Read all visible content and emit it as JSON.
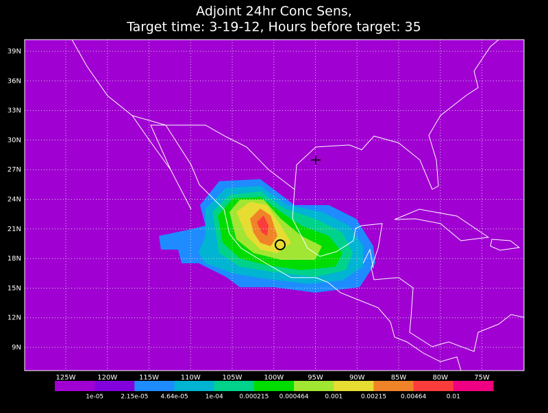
{
  "map": {
    "title": [
      "Adjoint 24hr Conc Sens,",
      "Target time: 3-19-12, Hours before target: 35"
    ],
    "lat_labels": [
      "39N",
      "36N",
      "33N",
      "30N",
      "27N",
      "24N",
      "21N",
      "18N",
      "15N",
      "12N",
      "9N"
    ],
    "lon_labels": [
      "125W",
      "120W",
      "115W",
      "110W",
      "105W",
      "100W",
      "95W",
      "90W",
      "85W",
      "80W",
      "75W"
    ],
    "colorbar": {
      "colors": [
        "#a000d2",
        "#8200dc",
        "#1e8cff",
        "#00b4d2",
        "#00d28c",
        "#00dc00",
        "#a0e632",
        "#e6dc32",
        "#f08228",
        "#fa3c3c",
        "#f00082"
      ],
      "labels": [
        "1e-05",
        "2.15e-05",
        "4.64e-05",
        "1e-04",
        "0.000215",
        "0.000464",
        "0.001",
        "0.00215",
        "0.00464",
        "0.01"
      ]
    }
  }
}
